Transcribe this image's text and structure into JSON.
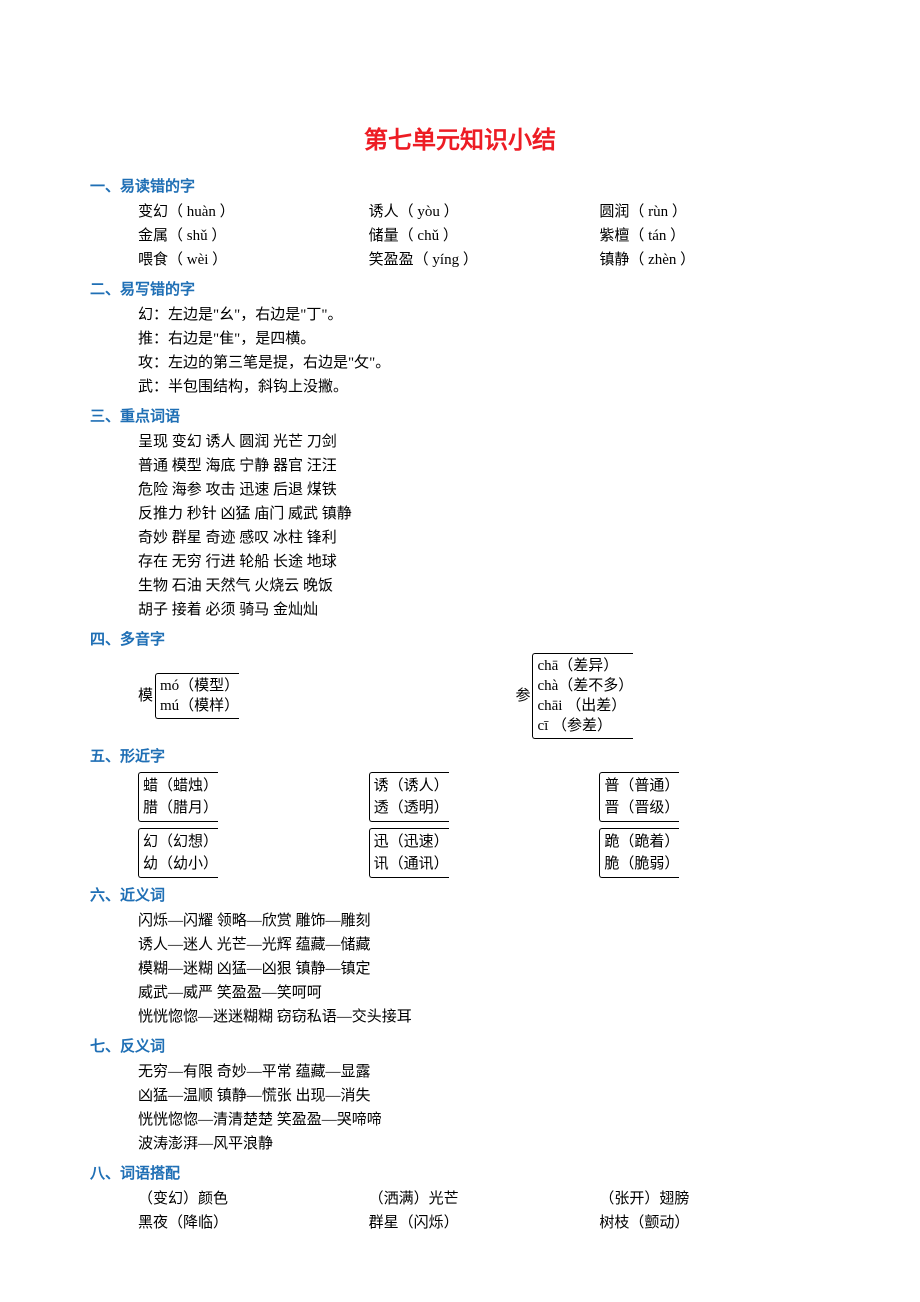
{
  "title": "第七单元知识小结",
  "sections": {
    "s1": {
      "header": "一、易读错的字",
      "rows": [
        [
          "变幻（ huàn ）",
          "诱人（ yòu ）",
          "圆润（ rùn ）"
        ],
        [
          "金属（ shǔ ）",
          "储量（ chǔ ）",
          "紫檀（ tán ）"
        ],
        [
          "喂食（ wèi ）",
          "笑盈盈（ yíng ）",
          "镇静（ zhèn ）"
        ]
      ]
    },
    "s2": {
      "header": "二、易写错的字",
      "lines": [
        "幻：左边是\"幺\"，右边是\"丁\"。",
        "推：右边是\"隹\"，是四横。",
        "攻：左边的第三笔是提，右边是\"攵\"。",
        "武：半包围结构，斜钩上没撇。"
      ]
    },
    "s3": {
      "header": "三、重点词语",
      "lines": [
        "呈现 变幻 诱人 圆润 光芒 刀剑",
        "普通 模型 海底 宁静 器官 汪汪",
        "危险 海参 攻击 迅速 后退 煤铁",
        "反推力 秒针 凶猛 庙门 威武 镇静",
        "奇妙 群星 奇迹 感叹 冰柱 锋利",
        "存在 无穷 行进 轮船 长途 地球",
        "生物 石油 天然气 火烧云 晚饭",
        "胡子 接着 必须 骑马 金灿灿"
      ]
    },
    "s4": {
      "header": "四、多音字",
      "left": {
        "char": "模",
        "items": [
          "mó（模型）",
          "mú（模样）"
        ]
      },
      "right": {
        "char": "参",
        "items": [
          "chā（差异）",
          "chà（差不多）",
          "chāi  （出差）",
          "cī    （参差）"
        ]
      }
    },
    "s5": {
      "header": "五、形近字",
      "rows": [
        [
          {
            "items": [
              "蜡（蜡烛）",
              "腊（腊月）"
            ]
          },
          {
            "items": [
              "诱（诱人）",
              "透（透明）"
            ]
          },
          {
            "items": [
              "普（普通）",
              "晋（晋级）"
            ]
          }
        ],
        [
          {
            "items": [
              "幻（幻想）",
              "幼（幼小）"
            ]
          },
          {
            "items": [
              "迅（迅速）",
              "讯（通讯）"
            ]
          },
          {
            "items": [
              "跪（跪着）",
              "脆（脆弱）"
            ]
          }
        ]
      ]
    },
    "s6": {
      "header": "六、近义词",
      "lines": [
        "闪烁—闪耀 领略—欣赏 雕饰—雕刻",
        "诱人—迷人 光芒—光辉 蕴藏—储藏",
        "模糊—迷糊 凶猛—凶狠 镇静—镇定",
        "威武—威严 笑盈盈—笑呵呵",
        "恍恍惚惚—迷迷糊糊 窃窃私语—交头接耳"
      ]
    },
    "s7": {
      "header": "七、反义词",
      "lines": [
        "无穷—有限 奇妙—平常 蕴藏—显露",
        "凶猛—温顺 镇静—慌张 出现—消失",
        "恍恍惚惚—清清楚楚 笑盈盈—哭啼啼",
        "波涛澎湃—风平浪静"
      ]
    },
    "s8": {
      "header": "八、词语搭配",
      "rows": [
        [
          "（变幻）颜色",
          "（洒满）光芒",
          "（张开）翅膀"
        ],
        [
          "黑夜（降临）",
          "群星（闪烁）",
          "树枝（颤动）"
        ]
      ]
    }
  },
  "colors": {
    "title": "#ed1c24",
    "header": "#1f6fb5",
    "text": "#000000",
    "background": "#ffffff"
  },
  "fonts": {
    "body_size": 15,
    "title_size": 24
  }
}
